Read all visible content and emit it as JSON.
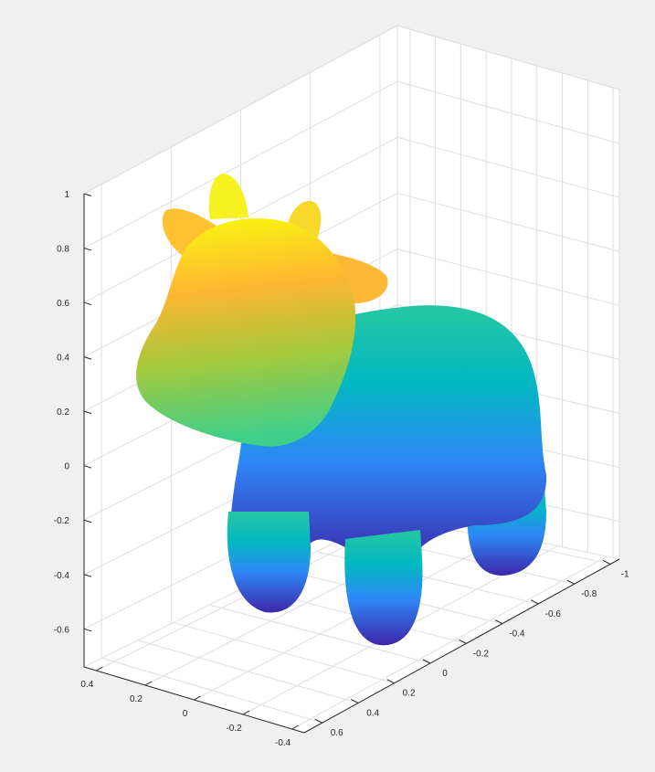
{
  "chart_data": {
    "type": "surface",
    "title": "",
    "xlabel": "",
    "ylabel": "",
    "zlabel": "",
    "grid": true,
    "box": true,
    "colormap": "parula",
    "surface_description": "cow mesh",
    "z_axis": {
      "ticks": [
        1,
        0.8,
        0.6,
        0.4,
        0.2,
        0,
        -0.2,
        -0.4,
        -0.6
      ],
      "tick_labels": [
        "1",
        "0.8",
        "0.6",
        "0.4",
        "0.2",
        "0",
        "-0.2",
        "-0.4",
        "-0.6"
      ],
      "range": [
        -0.74,
        1
      ]
    },
    "x_axis": {
      "ticks": [
        0.4,
        0.2,
        0,
        -0.2,
        -0.4
      ],
      "tick_labels": [
        "0.4",
        "0.2",
        "0",
        "-0.2",
        "-0.4"
      ],
      "range": [
        0.45,
        -0.45
      ]
    },
    "y_axis": {
      "ticks": [
        0.6,
        0.4,
        0.2,
        0,
        -0.2,
        -0.4,
        -0.6,
        -0.8,
        -1
      ],
      "tick_labels": [
        "0.6",
        "0.4",
        "0.2",
        "0",
        "-0.2",
        "-0.4",
        "-0.6",
        "-0.8",
        "-1"
      ],
      "range": [
        0.7,
        -1.05
      ]
    },
    "colors": {
      "background": "#f0f0f0",
      "axes_background": "#ffffff",
      "grid": "#dedede",
      "axis": "#262626",
      "colormap_low": "#3d26a8",
      "colormap_mid_blue": "#2e87f7",
      "colormap_mid_cyan": "#03b8c2",
      "colormap_green": "#81cc59",
      "colormap_orange": "#feb632",
      "colormap_high": "#f9fb0e"
    }
  }
}
